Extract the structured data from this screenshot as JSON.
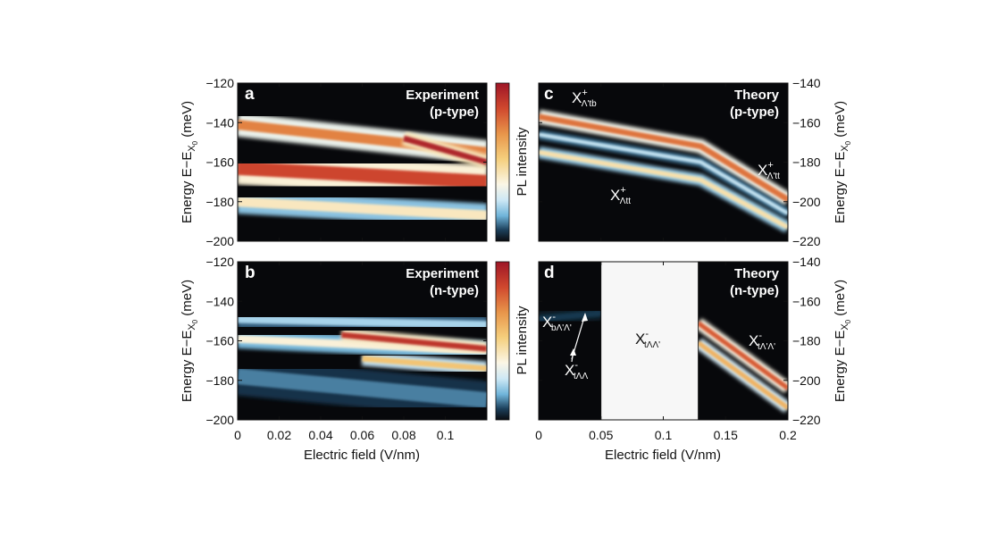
{
  "chart_data": [
    {
      "panel": "a",
      "type": "heatmap",
      "title": [
        "Experiment",
        "(p-type)"
      ],
      "xlim": [
        0,
        0.12
      ],
      "ylim": [
        -200,
        -120
      ],
      "yticks": [
        -200,
        -180,
        -160,
        -140,
        -120
      ],
      "xticks": [],
      "ylabel": "Energy E−E",
      "ylabel_sub": "X",
      "ylabel_subsub": "0",
      "ylabel_unit": " (meV)",
      "colorbar_label": "PL intensity",
      "bands": [
        {
          "x": [
            0,
            0.12
          ],
          "y": [
            -141,
            -155
          ],
          "width": 5,
          "intensity": 0.72
        },
        {
          "x": [
            0,
            0.12
          ],
          "y": [
            -163,
            -170
          ],
          "width": 7,
          "intensity": 0.85
        },
        {
          "x": [
            0,
            0.12
          ],
          "y": [
            -180,
            -187
          ],
          "width": 5,
          "intensity": 0.42
        },
        {
          "x": [
            0.08,
            0.12
          ],
          "y": [
            -148,
            -160
          ],
          "width": 3,
          "intensity": 0.95
        }
      ]
    },
    {
      "panel": "b",
      "type": "heatmap",
      "title": [
        "Experiment",
        "(n-type)"
      ],
      "xlim": [
        0,
        0.12
      ],
      "ylim": [
        -200,
        -120
      ],
      "yticks": [
        -200,
        -180,
        -160,
        -140,
        -120
      ],
      "xticks": [
        0,
        0.02,
        0.04,
        0.06,
        0.08,
        0.1
      ],
      "xtick_labels": [
        "0",
        "0.02",
        "0.04",
        "0.06",
        "0.08",
        "0.1"
      ],
      "xlabel": "Electric field (V/nm)",
      "ylabel": "Energy E−E",
      "ylabel_sub": "X",
      "ylabel_subsub": "0",
      "ylabel_unit": " (meV)",
      "colorbar_label": "PL intensity",
      "bands": [
        {
          "x": [
            0,
            0.12
          ],
          "y": [
            -149,
            -152
          ],
          "width": 4,
          "intensity": 0.22
        },
        {
          "x": [
            0,
            0.12
          ],
          "y": [
            -159,
            -165
          ],
          "width": 4,
          "intensity": 0.38
        },
        {
          "x": [
            0.05,
            0.12
          ],
          "y": [
            -157,
            -164
          ],
          "width": 3,
          "intensity": 0.9
        },
        {
          "x": [
            0.06,
            0.12
          ],
          "y": [
            -169,
            -174
          ],
          "width": 3,
          "intensity": 0.55
        },
        {
          "x": [
            0,
            0.12
          ],
          "y": [
            -178,
            -190
          ],
          "width": 8,
          "intensity": 0.12
        }
      ]
    },
    {
      "panel": "c",
      "type": "heatmap",
      "title": [
        "Theory",
        "(p-type)"
      ],
      "xlim": [
        0,
        0.2
      ],
      "ylim": [
        -220,
        -140
      ],
      "yticks": [
        -220,
        -200,
        -180,
        -160,
        -140
      ],
      "xticks": [],
      "ylabel": "Energy E−E",
      "ylabel_sub": "X",
      "ylabel_subsub": "0",
      "ylabel_unit": " (meV)",
      "annotations": [
        {
          "main": "X",
          "sup": "+",
          "sub": "Λ'tb"
        },
        {
          "main": "X",
          "sup": "+",
          "sub": "Λ'tt"
        },
        {
          "main": "X",
          "sup": "+",
          "sub": "Λtt"
        }
      ],
      "bands": [
        {
          "x": [
            0,
            0.13,
            0.2
          ],
          "y": [
            -157,
            -172,
            -199
          ],
          "width": 3,
          "intensity": 0.75
        },
        {
          "x": [
            0,
            0.13,
            0.2
          ],
          "y": [
            -175,
            -189,
            -213
          ],
          "width": 2.5,
          "intensity": 0.45
        },
        {
          "x": [
            0,
            0.13,
            0.2
          ],
          "y": [
            -166,
            -180,
            -206
          ],
          "width": 2,
          "intensity": 0.25
        }
      ]
    },
    {
      "panel": "d",
      "type": "heatmap",
      "title": [
        "Theory",
        "(n-type)"
      ],
      "xlim": [
        0,
        0.2
      ],
      "ylim": [
        -220,
        -140
      ],
      "yticks": [
        -220,
        -200,
        -180,
        -160,
        -140
      ],
      "xticks": [
        0,
        0.05,
        0.1,
        0.15,
        0.2
      ],
      "xtick_labels": [
        "0",
        "0.05",
        "0.1",
        "0.15",
        "0.2"
      ],
      "xlabel": "Electric field (V/nm)",
      "ylabel": "Energy E−E",
      "ylabel_sub": "X",
      "ylabel_subsub": "0",
      "ylabel_unit": " (meV)",
      "blank_region": [
        0.05,
        0.128
      ],
      "annotations": [
        {
          "main": "X",
          "sup": "-",
          "sub": "bΛ'Λ'"
        },
        {
          "main": "X",
          "sup": "-",
          "sub": "tΛΛ"
        },
        {
          "main": "X",
          "sup": "-",
          "sub": "tΛΛ'"
        },
        {
          "main": "X",
          "sup": "-",
          "sub": "tΛ'Λ'"
        }
      ],
      "bands": [
        {
          "x": [
            0.128,
            0.2
          ],
          "y": [
            -171,
            -204
          ],
          "width": 2.5,
          "intensity": 0.8
        },
        {
          "x": [
            0.128,
            0.2
          ],
          "y": [
            -181,
            -214
          ],
          "width": 2.5,
          "intensity": 0.6
        },
        {
          "x": [
            0,
            0.05
          ],
          "y": [
            -169,
            -166
          ],
          "width": 3,
          "intensity": 0.06
        }
      ]
    }
  ]
}
